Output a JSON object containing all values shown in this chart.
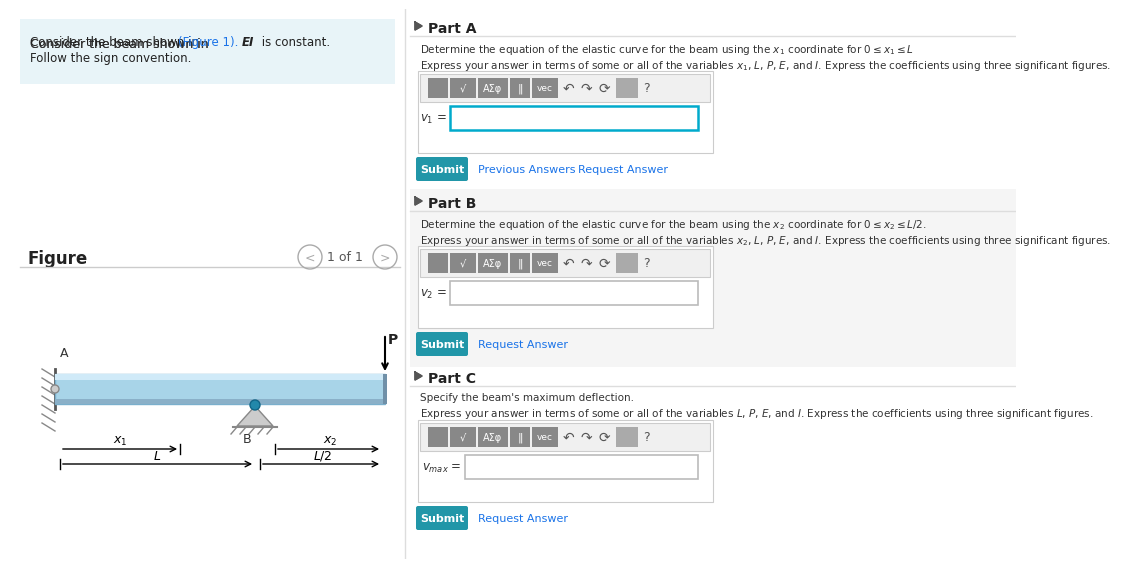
{
  "bg_color": "#ffffff",
  "left_panel_bg": "#e8f4f8",
  "left_text_line1": "Consider the beam shown in (Figure 1). ",
  "left_text_EI": "EI",
  "left_text_line1_end": " is constant.",
  "left_text_line2": "Follow the sign convention.",
  "figure_label": "Figure",
  "nav_text": "1 of 1",
  "partA_title": "Part A",
  "partA_desc1": "Determine the equation of the elastic curve for the beam using the ",
  "partA_desc1_x1": "x₁",
  "partA_desc1_end": " coordinate for 0 ≤ x₁ ≤ L",
  "partA_desc2": "Express your answer in terms of some or all of the variables x₁, L, P, E, and I. Express the coefficients using three significant figures.",
  "partA_label": "v₁ =",
  "partB_title": "Part B",
  "partB_desc1": "Determine the equation of the elastic curve for the beam using the x₂ coordinate for 0 ≤ x₂ ≤ L/2.",
  "partB_desc2": "Express your answer in terms of some or all of the variables x₂, L, P, E, and I. Express the coefficients using three significant figures.",
  "partB_label": "v₂ =",
  "partC_title": "Part C",
  "partC_desc1": "Specify the beam's maximum deflection.",
  "partC_desc2": "Express your answer in terms of some or all of the variables L, P, E, and I. Express the coefficients using three significant figures.",
  "partC_label": "vₘₐˣ =",
  "submit_color": "#2196a8",
  "submit_text_color": "#ffffff",
  "link_color": "#1a73e8",
  "box_border_color": "#cccccc",
  "toolbar_bg": "#888888",
  "input_border_color_A": "#00aacc",
  "input_border_color_BC": "#aaaaaa",
  "beam_color_top": "#add8e6",
  "beam_color_body": "#87ceeb",
  "beam_color_bottom": "#b0c4de",
  "divider_color": "#cccccc",
  "section_bg_A": "#ffffff",
  "section_bg_B": "#f5f5f5",
  "section_bg_C": "#ffffff"
}
